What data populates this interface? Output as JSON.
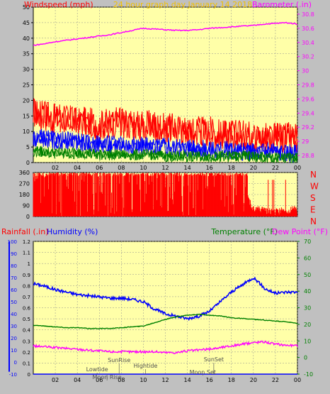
{
  "colors": {
    "background": "#c0c0c0",
    "plot_bg": "#ffffa8",
    "windspeed": "#ff0000",
    "windspeed_avg": "#0000ff",
    "windspeed_low": "#008000",
    "barometer": "#ff00ff",
    "direction": "#ff0000",
    "humidity": "#0000ff",
    "temperature": "#008000",
    "dewpoint": "#ff00ff",
    "rainfall": "#0000ff",
    "grid": "#909090",
    "title": "#f0c000",
    "ticks": "#000000"
  },
  "chart_data": [
    {
      "type": "line",
      "title": "24 hour graph day   January 14 2018",
      "left_label": "Windspeed (mph)",
      "right_label": "Barometer (.in)",
      "x_ticks": [
        "02",
        "04",
        "06",
        "08",
        "10",
        "12",
        "14",
        "16",
        "18",
        "20",
        "22",
        "00"
      ],
      "xlim": [
        0,
        24
      ],
      "ylim": [
        0,
        50
      ],
      "y_ticks": [
        "0",
        "5",
        "10",
        "15",
        "20",
        "25",
        "30",
        "35",
        "40",
        "45",
        "50"
      ],
      "y2lim": [
        28.7,
        30.9
      ],
      "y2_ticks": [
        "28.8",
        "29",
        "29.2",
        "29.4",
        "29.6",
        "29.8",
        "30",
        "30.2",
        "30.4",
        "30.6",
        "30.8"
      ],
      "grid": true,
      "series": [
        {
          "key": "gust",
          "x": [
            0,
            1,
            2,
            3,
            4,
            5,
            6,
            7,
            8,
            9,
            10,
            11,
            12,
            13,
            14,
            15,
            16,
            17,
            18,
            19,
            20,
            21,
            22,
            23,
            24
          ],
          "values": [
            16,
            15,
            14,
            14,
            13,
            13,
            12,
            13,
            13,
            12,
            12,
            12,
            11,
            11,
            10,
            10,
            10,
            9,
            9,
            9,
            8,
            8,
            8,
            8,
            8
          ]
        },
        {
          "key": "average",
          "x": [
            0,
            1,
            2,
            3,
            4,
            5,
            6,
            7,
            8,
            9,
            10,
            11,
            12,
            13,
            14,
            15,
            16,
            17,
            18,
            19,
            20,
            21,
            22,
            23,
            24
          ],
          "values": [
            8,
            8,
            7,
            7,
            7,
            6,
            6,
            6,
            6,
            5.5,
            5.5,
            5,
            5,
            5,
            4.5,
            4.5,
            4,
            4,
            4,
            3.5,
            3.5,
            3.5,
            3.5,
            3,
            3
          ]
        },
        {
          "key": "low",
          "x": [
            0,
            1,
            2,
            3,
            4,
            5,
            6,
            7,
            8,
            9,
            10,
            11,
            12,
            13,
            14,
            15,
            16,
            17,
            18,
            19,
            20,
            21,
            22,
            23,
            24
          ],
          "values": [
            3.5,
            3.5,
            3,
            3,
            3,
            3,
            2.5,
            2.5,
            2.5,
            2.5,
            2.5,
            2.5,
            2,
            2,
            2,
            2,
            2,
            2,
            2,
            2,
            2,
            1.5,
            1.5,
            1.5,
            1.5
          ]
        },
        {
          "key": "barometer",
          "axis": "right",
          "x": [
            0,
            1,
            2,
            3,
            4,
            5,
            6,
            7,
            8,
            9,
            10,
            11,
            12,
            13,
            14,
            15,
            16,
            17,
            18,
            19,
            20,
            21,
            22,
            23,
            24
          ],
          "values": [
            30.36,
            30.38,
            30.41,
            30.43,
            30.45,
            30.47,
            30.49,
            30.51,
            30.54,
            30.57,
            30.6,
            30.59,
            30.58,
            30.57,
            30.57,
            30.58,
            30.6,
            30.61,
            30.62,
            30.63,
            30.64,
            30.66,
            30.67,
            30.68,
            30.66
          ]
        }
      ]
    },
    {
      "type": "scatter",
      "ylim": [
        0,
        360
      ],
      "y_ticks": [
        "0",
        "90",
        "180",
        "270",
        "360"
      ],
      "compass_labels": [
        "N",
        "W",
        "S",
        "E",
        "N"
      ],
      "series": [
        {
          "key": "direction",
          "x": [
            0,
            1,
            2,
            3,
            4,
            5,
            6,
            7,
            8,
            9,
            10,
            11,
            12,
            13,
            14,
            15,
            16,
            17,
            18,
            19,
            19.5,
            20,
            21,
            22,
            23,
            24
          ],
          "values": [
            340,
            350,
            340,
            335,
            345,
            350,
            330,
            340,
            355,
            345,
            340,
            330,
            345,
            350,
            340,
            335,
            330,
            340,
            350,
            300,
            150,
            60,
            50,
            40,
            50,
            60
          ]
        }
      ]
    },
    {
      "type": "line",
      "left_label_rain": "Rainfall (.in)",
      "left_label_hum": "Humidity (%)",
      "right_label_temp": "Temperature (°F)",
      "right_label_dew": "Dew Point (°F)",
      "x_ticks": [
        "02",
        "04",
        "06",
        "08",
        "10",
        "12",
        "14",
        "16",
        "18",
        "20",
        "22",
        "00"
      ],
      "xlim": [
        0,
        24
      ],
      "rain_ylim": [
        0,
        1.2
      ],
      "rain_ticks": [
        "0",
        "0.1",
        "0.2",
        "0.3",
        "0.4",
        "0.5",
        "0.6",
        "0.7",
        "0.8",
        "0.9",
        "1",
        "1.1",
        "1.2"
      ],
      "hum_ylim": [
        -10,
        100
      ],
      "hum_ticks": [
        "-10",
        "0",
        "10",
        "20",
        "30",
        "40",
        "50",
        "60",
        "70",
        "80",
        "90",
        "100"
      ],
      "temp_ylim": [
        -10,
        70
      ],
      "temp_ticks": [
        "-10",
        "0",
        "10",
        "20",
        "30",
        "40",
        "50",
        "60",
        "70"
      ],
      "grid": true,
      "series": [
        {
          "key": "humidity",
          "x": [
            0,
            1,
            2,
            3,
            4,
            5,
            6,
            7,
            8,
            9,
            10,
            11,
            12,
            13,
            14,
            15,
            16,
            17,
            18,
            19,
            20,
            20.5,
            21,
            22,
            23,
            24
          ],
          "values": [
            65,
            63,
            60,
            58,
            56,
            55,
            54,
            53,
            53,
            52,
            50,
            44,
            40,
            38,
            36,
            38,
            42,
            50,
            58,
            64,
            70,
            66,
            61,
            57,
            58,
            58
          ]
        },
        {
          "key": "temperature",
          "x": [
            0,
            1,
            2,
            3,
            4,
            5,
            6,
            7,
            8,
            9,
            10,
            11,
            12,
            13,
            14,
            15,
            16,
            17,
            18,
            19,
            20,
            21,
            22,
            23,
            24
          ],
          "values": [
            19.5,
            19,
            18.5,
            18,
            18,
            17.5,
            17.5,
            17.5,
            18,
            18.5,
            19,
            21,
            23,
            24.5,
            25.5,
            26,
            25.5,
            25,
            24,
            23.5,
            23,
            22.5,
            22,
            21.5,
            20.5
          ]
        },
        {
          "key": "dewpoint",
          "x": [
            0,
            1,
            2,
            3,
            4,
            5,
            6,
            7,
            8,
            9,
            10,
            11,
            12,
            13,
            14,
            15,
            16,
            17,
            18,
            19,
            20,
            21,
            22,
            23,
            24
          ],
          "values": [
            7,
            6.5,
            6,
            5.5,
            5,
            4.5,
            4,
            3.5,
            3.5,
            3.5,
            3.5,
            3.5,
            3,
            3,
            4,
            4.5,
            5,
            6,
            7,
            8,
            9,
            9.5,
            8,
            7.5,
            7
          ]
        },
        {
          "key": "rainfall",
          "x": [
            0,
            24
          ],
          "values": [
            0,
            0
          ]
        }
      ],
      "annotations": [
        {
          "label": "Lowtide",
          "x": 5.8
        },
        {
          "label": "Moon Rise",
          "x": 6.7
        },
        {
          "label": "SunRise",
          "x": 7.8
        },
        {
          "label": "Hightide",
          "x": 10.2
        },
        {
          "label": "SunSet",
          "x": 16.4
        },
        {
          "label": "Moon Set",
          "x": 15.4
        }
      ]
    }
  ]
}
